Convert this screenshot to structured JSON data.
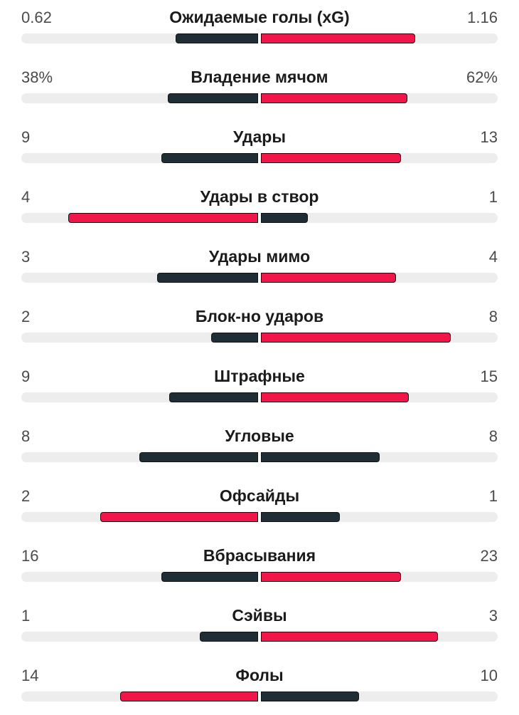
{
  "colors": {
    "winner": "#f0164a",
    "loser": "#1f2d35",
    "track": "#ededed"
  },
  "stats": [
    {
      "label": "Ожидаемые голы (xG)",
      "home": "0.62",
      "away": "1.16",
      "home_share": 0.348,
      "away_share": 0.651,
      "leader": "away"
    },
    {
      "label": "Владение мячом",
      "home": "38%",
      "away": "62%",
      "home_share": 0.381,
      "away_share": 0.619,
      "leader": "away"
    },
    {
      "label": "Удары",
      "home": "9",
      "away": "13",
      "home_share": 0.408,
      "away_share": 0.591,
      "leader": "away"
    },
    {
      "label": "Удары в створ",
      "home": "4",
      "away": "1",
      "home_share": 0.802,
      "away_share": 0.198,
      "leader": "home"
    },
    {
      "label": "Удары мимо",
      "home": "3",
      "away": "4",
      "home_share": 0.427,
      "away_share": 0.571,
      "leader": "away"
    },
    {
      "label": "Блок-но ударов",
      "home": "2",
      "away": "8",
      "home_share": 0.198,
      "away_share": 0.802,
      "leader": "away"
    },
    {
      "label": "Штрафные",
      "home": "9",
      "away": "15",
      "home_share": 0.375,
      "away_share": 0.625,
      "leader": "away"
    },
    {
      "label": "Угловые",
      "home": "8",
      "away": "8",
      "home_share": 0.5,
      "away_share": 0.5,
      "leader": "none"
    },
    {
      "label": "Офсайды",
      "home": "2",
      "away": "1",
      "home_share": 0.667,
      "away_share": 0.333,
      "leader": "home"
    },
    {
      "label": "Вбрасывания",
      "home": "16",
      "away": "23",
      "home_share": 0.408,
      "away_share": 0.591,
      "leader": "away"
    },
    {
      "label": "Сэйвы",
      "home": "1",
      "away": "3",
      "home_share": 0.246,
      "away_share": 0.748,
      "leader": "away"
    },
    {
      "label": "Фолы",
      "home": "14",
      "away": "10",
      "home_share": 0.583,
      "away_share": 0.414,
      "leader": "home"
    }
  ]
}
